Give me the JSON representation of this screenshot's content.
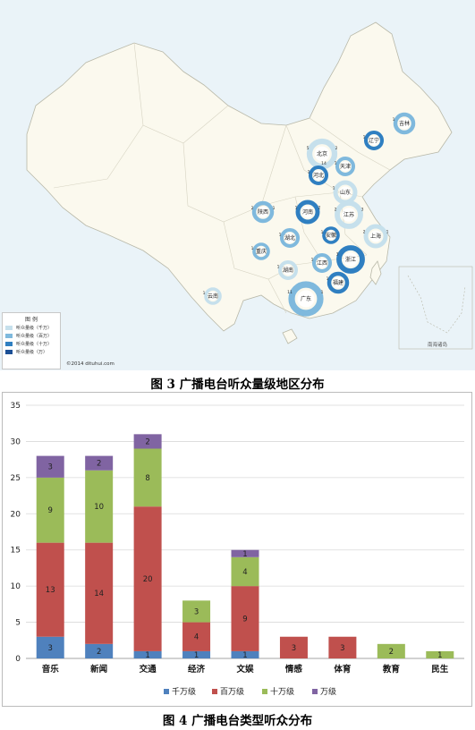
{
  "map": {
    "legend_title": "图 例",
    "legend_items": [
      {
        "label": "听众量级（千万）",
        "color": "#c6e0ec"
      },
      {
        "label": "听众量级（百万）",
        "color": "#7fb9dd"
      },
      {
        "label": "听众量级（十万）",
        "color": "#2f7fc1"
      },
      {
        "label": "听众量级（万）",
        "color": "#1b4f95"
      }
    ],
    "copyright": "©2014 dituhui.com",
    "nanhai_label": "南海诸岛",
    "regions": [
      {
        "name": "吉林",
        "counts": [
          "1"
        ]
      },
      {
        "name": "辽宁",
        "counts": [
          "1"
        ]
      },
      {
        "name": "北京",
        "counts": [
          "5",
          "2",
          "14"
        ]
      },
      {
        "name": "天津",
        "counts": [
          "1"
        ]
      },
      {
        "name": "河北",
        "counts": [
          "1"
        ]
      },
      {
        "name": "山东",
        "counts": [
          "1"
        ]
      },
      {
        "name": "陕西",
        "counts": [
          "2",
          "1"
        ]
      },
      {
        "name": "河南",
        "counts": [
          "1",
          "2"
        ]
      },
      {
        "name": "江苏",
        "counts": [
          "2",
          "3"
        ]
      },
      {
        "name": "湖北",
        "counts": [
          "1"
        ]
      },
      {
        "name": "安徽",
        "counts": [
          "1"
        ]
      },
      {
        "name": "上海",
        "counts": [
          "2",
          "1"
        ]
      },
      {
        "name": "重庆",
        "counts": [
          "1"
        ]
      },
      {
        "name": "浙江",
        "counts": [
          "3"
        ]
      },
      {
        "name": "湖南",
        "counts": [
          "1"
        ]
      },
      {
        "name": "江西",
        "counts": [
          "1"
        ]
      },
      {
        "name": "福建",
        "counts": [
          "1"
        ]
      },
      {
        "name": "云南",
        "counts": [
          "1"
        ]
      },
      {
        "name": "广东",
        "counts": [
          "11",
          "1"
        ]
      }
    ]
  },
  "captions": {
    "figure3": "图 3  广播电台听众量级地区分布",
    "figure4": "图 4 广播电台类型听众分布"
  },
  "chart_data": {
    "type": "bar",
    "stacked": true,
    "categories": [
      "音乐",
      "新闻",
      "交通",
      "经济",
      "文娱",
      "情感",
      "体育",
      "教育",
      "民生"
    ],
    "series": [
      {
        "name": "千万级",
        "color": "#4f81bd",
        "values": [
          3,
          2,
          1,
          1,
          1,
          0,
          0,
          0,
          0
        ]
      },
      {
        "name": "百万级",
        "color": "#c0504d",
        "values": [
          13,
          14,
          20,
          4,
          9,
          3,
          3,
          0,
          0
        ]
      },
      {
        "name": "十万级",
        "color": "#9bbb59",
        "values": [
          9,
          10,
          8,
          3,
          4,
          0,
          0,
          2,
          1
        ]
      },
      {
        "name": "万级",
        "color": "#8064a2",
        "values": [
          3,
          2,
          2,
          0,
          1,
          0,
          0,
          0,
          0
        ]
      }
    ],
    "ylim": [
      0,
      35
    ],
    "yticks": [
      0,
      5,
      10,
      15,
      20,
      25,
      30,
      35
    ],
    "grid": true,
    "legend_position": "bottom"
  }
}
